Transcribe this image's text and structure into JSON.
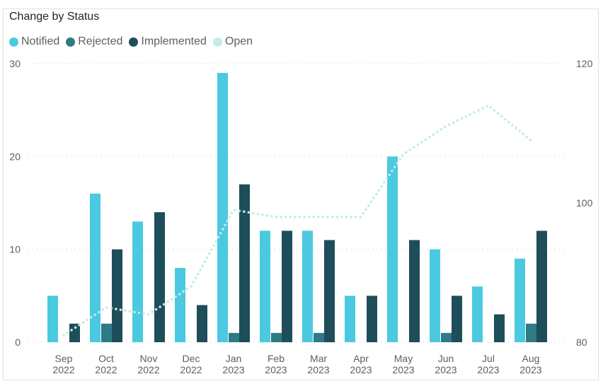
{
  "chart_data": {
    "type": "bar",
    "title": "Change by Status",
    "categories": [
      [
        "Sep",
        "2022"
      ],
      [
        "Oct",
        "2022"
      ],
      [
        "Nov",
        "2022"
      ],
      [
        "Dec",
        "2022"
      ],
      [
        "Jan",
        "2023"
      ],
      [
        "Feb",
        "2023"
      ],
      [
        "Mar",
        "2023"
      ],
      [
        "Apr",
        "2023"
      ],
      [
        "May",
        "2023"
      ],
      [
        "Jun",
        "2023"
      ],
      [
        "Jul",
        "2023"
      ],
      [
        "Aug",
        "2023"
      ]
    ],
    "series": [
      {
        "name": "Notified",
        "type": "bar",
        "axis": "left",
        "color": "#4ac9e0",
        "values": [
          5,
          16,
          13,
          8,
          29,
          12,
          12,
          5,
          20,
          10,
          6,
          9
        ]
      },
      {
        "name": "Rejected",
        "type": "bar",
        "axis": "left",
        "color": "#2e7b87",
        "values": [
          0,
          2,
          0,
          0,
          1,
          1,
          1,
          0,
          0,
          1,
          0,
          2
        ]
      },
      {
        "name": "Implemented",
        "type": "bar",
        "axis": "left",
        "color": "#1d4e5a",
        "values": [
          2,
          10,
          14,
          4,
          17,
          12,
          11,
          5,
          11,
          5,
          3,
          12
        ]
      },
      {
        "name": "Open",
        "type": "line",
        "axis": "right",
        "color": "#c2ece6",
        "values": [
          81,
          85,
          84,
          88,
          99,
          98,
          98,
          98,
          107,
          111,
          114,
          109
        ]
      }
    ],
    "ylim_left": [
      0,
      30
    ],
    "yticks_left": [
      "0",
      "10",
      "20",
      "30"
    ],
    "ylim_right": [
      80,
      120
    ],
    "yticks_right": [
      "80",
      "100",
      "120"
    ],
    "grid": true,
    "legend": "top-left"
  }
}
